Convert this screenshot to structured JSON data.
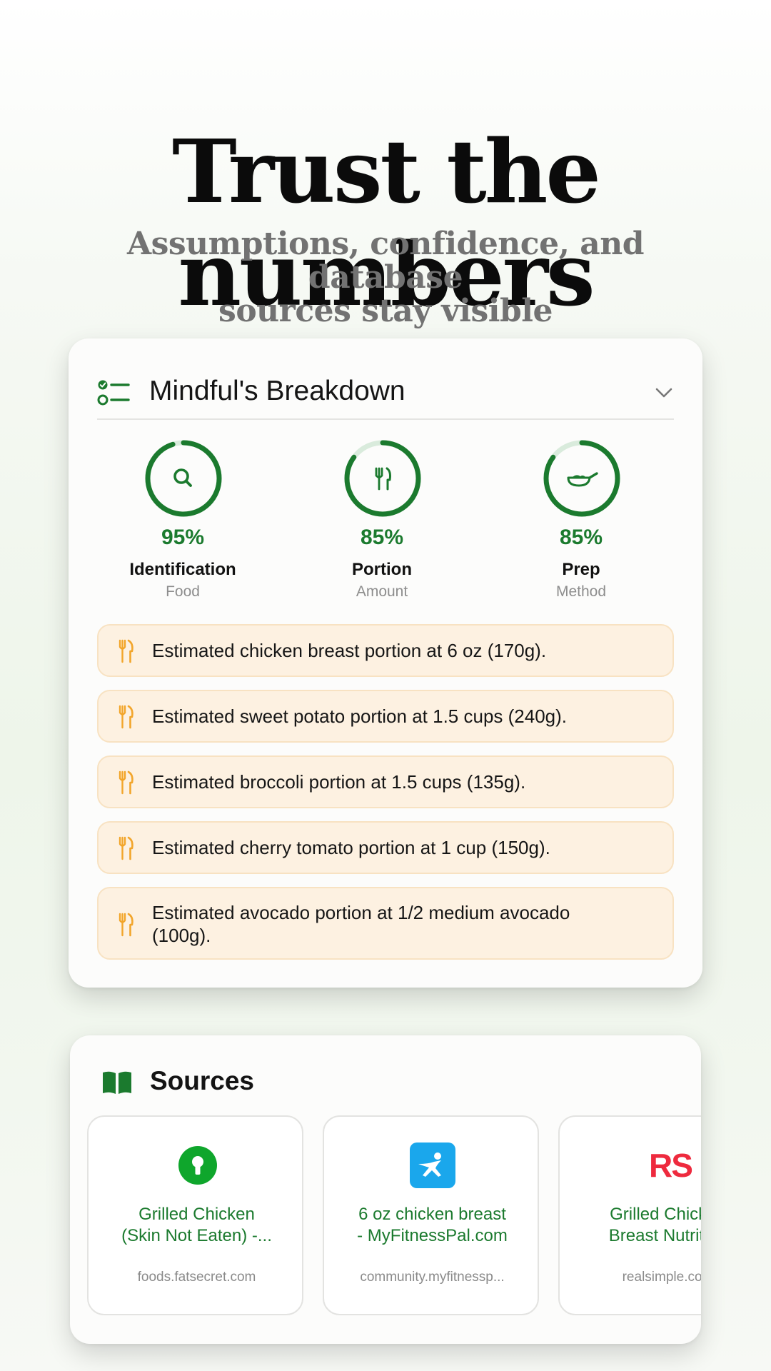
{
  "headline": "Trust the numbers",
  "subhead_line1": "Assumptions, confidence, and database",
  "subhead_line2": "sources stay visible",
  "breakdown": {
    "title": "Mindful's Breakdown",
    "metrics": [
      {
        "percent": "95%",
        "fill": 0.95,
        "label": "Identification",
        "sub": "Food",
        "icon": "search-icon"
      },
      {
        "percent": "85%",
        "fill": 0.85,
        "label": "Portion",
        "sub": "Amount",
        "icon": "fork-knife-icon"
      },
      {
        "percent": "85%",
        "fill": 0.85,
        "label": "Prep",
        "sub": "Method",
        "icon": "frying-pan-icon"
      }
    ],
    "assumptions": [
      {
        "line1": "Estimated chicken breast portion at 6 oz (170g).",
        "line2": ""
      },
      {
        "line1": "Estimated sweet potato portion at 1.5 cups (240g).",
        "line2": ""
      },
      {
        "line1": "Estimated broccoli portion at 1.5 cups (135g).",
        "line2": ""
      },
      {
        "line1": "Estimated cherry tomato portion at 1 cup (150g).",
        "line2": ""
      },
      {
        "line1": "Estimated avocado portion at 1/2 medium avocado",
        "line2": "(100g)."
      }
    ]
  },
  "sources": {
    "title": "Sources",
    "items": [
      {
        "name_line1": "Grilled Chicken",
        "name_line2": "(Skin Not Eaten) -...",
        "host": "foods.fatsecret.com",
        "logo": "fatsecret-logo"
      },
      {
        "name_line1": "6 oz chicken breast",
        "name_line2": "- MyFitnessPal.com",
        "host": "community.myfitnessp...",
        "logo": "myfitnesspal-logo"
      },
      {
        "name_line1": "Grilled Chicken",
        "name_line2": "Breast Nutrition",
        "host": "realsimple.com",
        "logo_text": "RS",
        "logo": "realsimple-logo"
      }
    ]
  },
  "colors": {
    "accent_green": "#1b7a2e",
    "ring_track": "#d9ebdc",
    "assumption_bg": "#fdf1e1",
    "fork_orange": "#f2a52a"
  }
}
